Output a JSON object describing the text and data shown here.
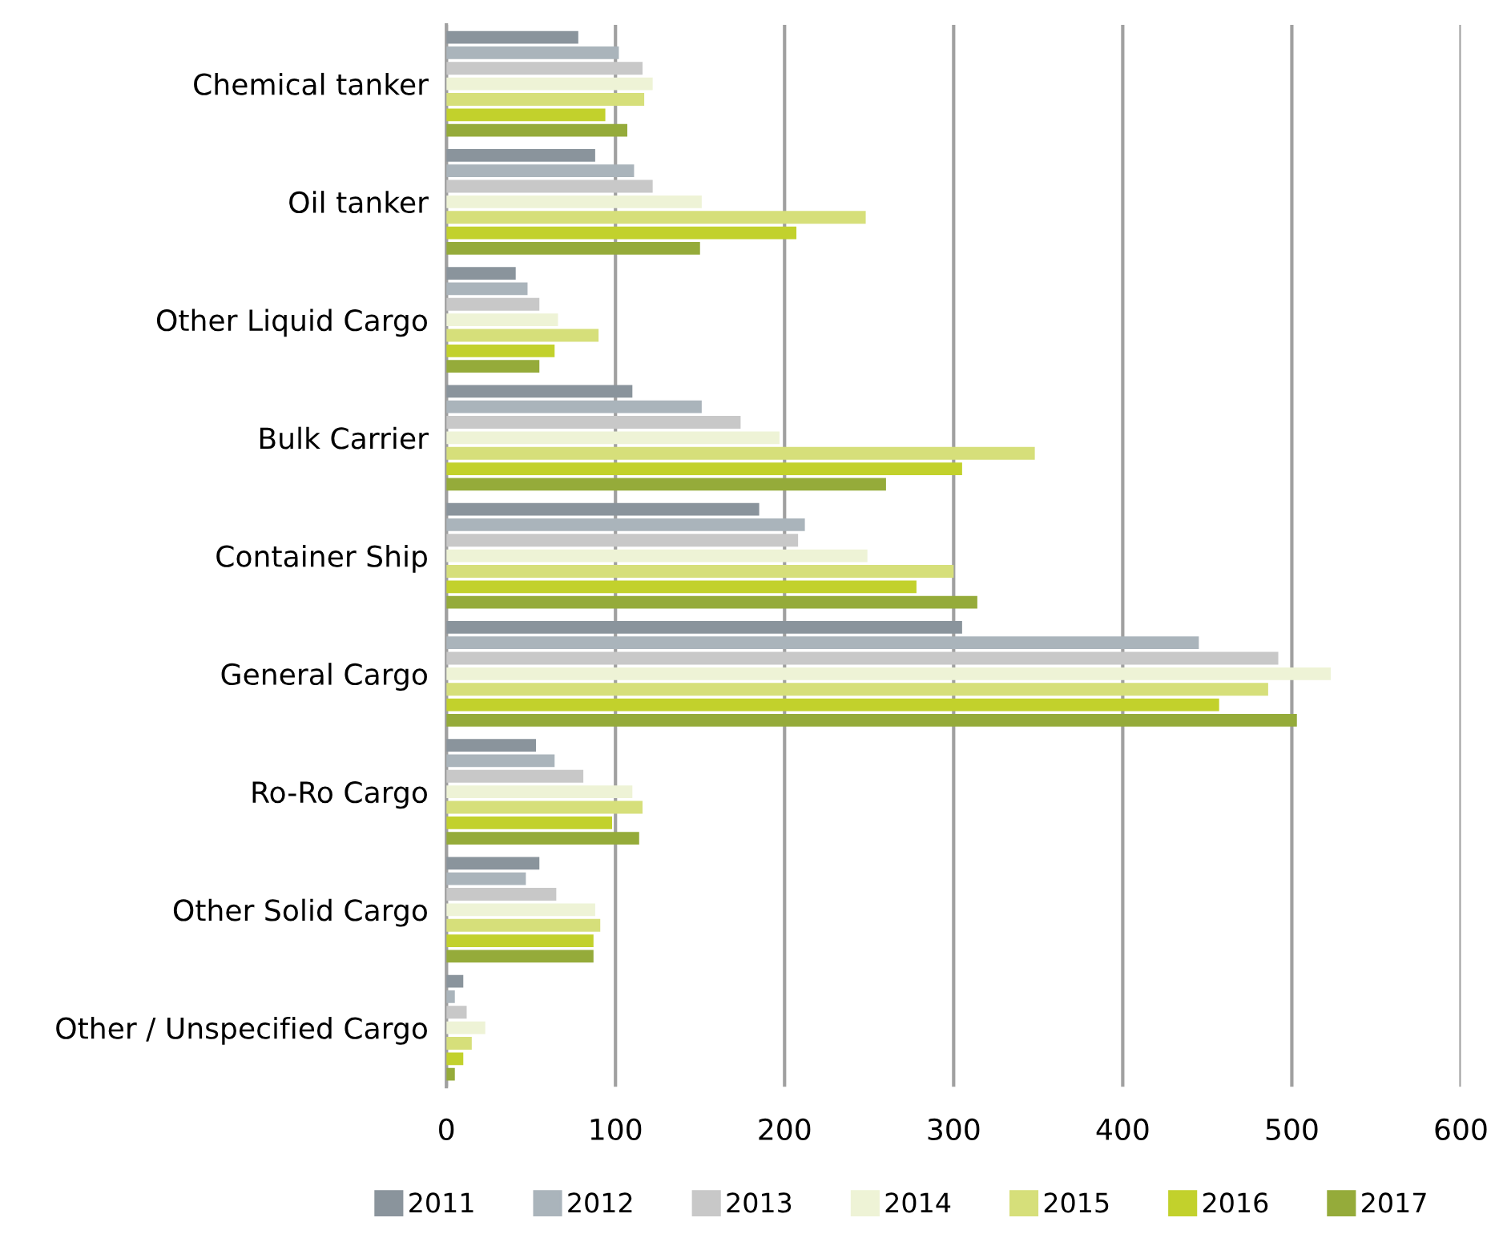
{
  "chart_data": {
    "type": "bar",
    "orientation": "horizontal",
    "categories": [
      "Chemical tanker",
      "Oil tanker",
      "Other Liquid Cargo",
      "Bulk Carrier",
      "Container Ship",
      "General Cargo",
      "Ro-Ro Cargo",
      "Other Solid Cargo",
      "Other / Unspecified Cargo"
    ],
    "series": [
      {
        "name": "2011",
        "color": "#8a949c",
        "values": [
          78,
          88,
          41,
          110,
          185,
          305,
          53,
          55,
          10
        ]
      },
      {
        "name": "2012",
        "color": "#aab4bb",
        "values": [
          102,
          111,
          48,
          151,
          212,
          445,
          64,
          47,
          5
        ]
      },
      {
        "name": "2013",
        "color": "#c8c8c8",
        "values": [
          116,
          122,
          55,
          174,
          208,
          492,
          81,
          65,
          12
        ]
      },
      {
        "name": "2014",
        "color": "#eef3d6",
        "values": [
          122,
          151,
          66,
          197,
          249,
          523,
          110,
          88,
          23
        ]
      },
      {
        "name": "2015",
        "color": "#d6df7a",
        "values": [
          117,
          248,
          90,
          348,
          300,
          486,
          116,
          91,
          15
        ]
      },
      {
        "name": "2016",
        "color": "#c2d12c",
        "values": [
          94,
          207,
          64,
          305,
          278,
          457,
          98,
          87,
          10
        ]
      },
      {
        "name": "2017",
        "color": "#95ab3a",
        "values": [
          107,
          150,
          55,
          260,
          314,
          503,
          114,
          87,
          5
        ]
      }
    ],
    "xlim": [
      0,
      600
    ],
    "xticks": [
      0,
      100,
      200,
      300,
      400,
      500,
      600
    ],
    "grid": "x",
    "legend": "bottom"
  }
}
